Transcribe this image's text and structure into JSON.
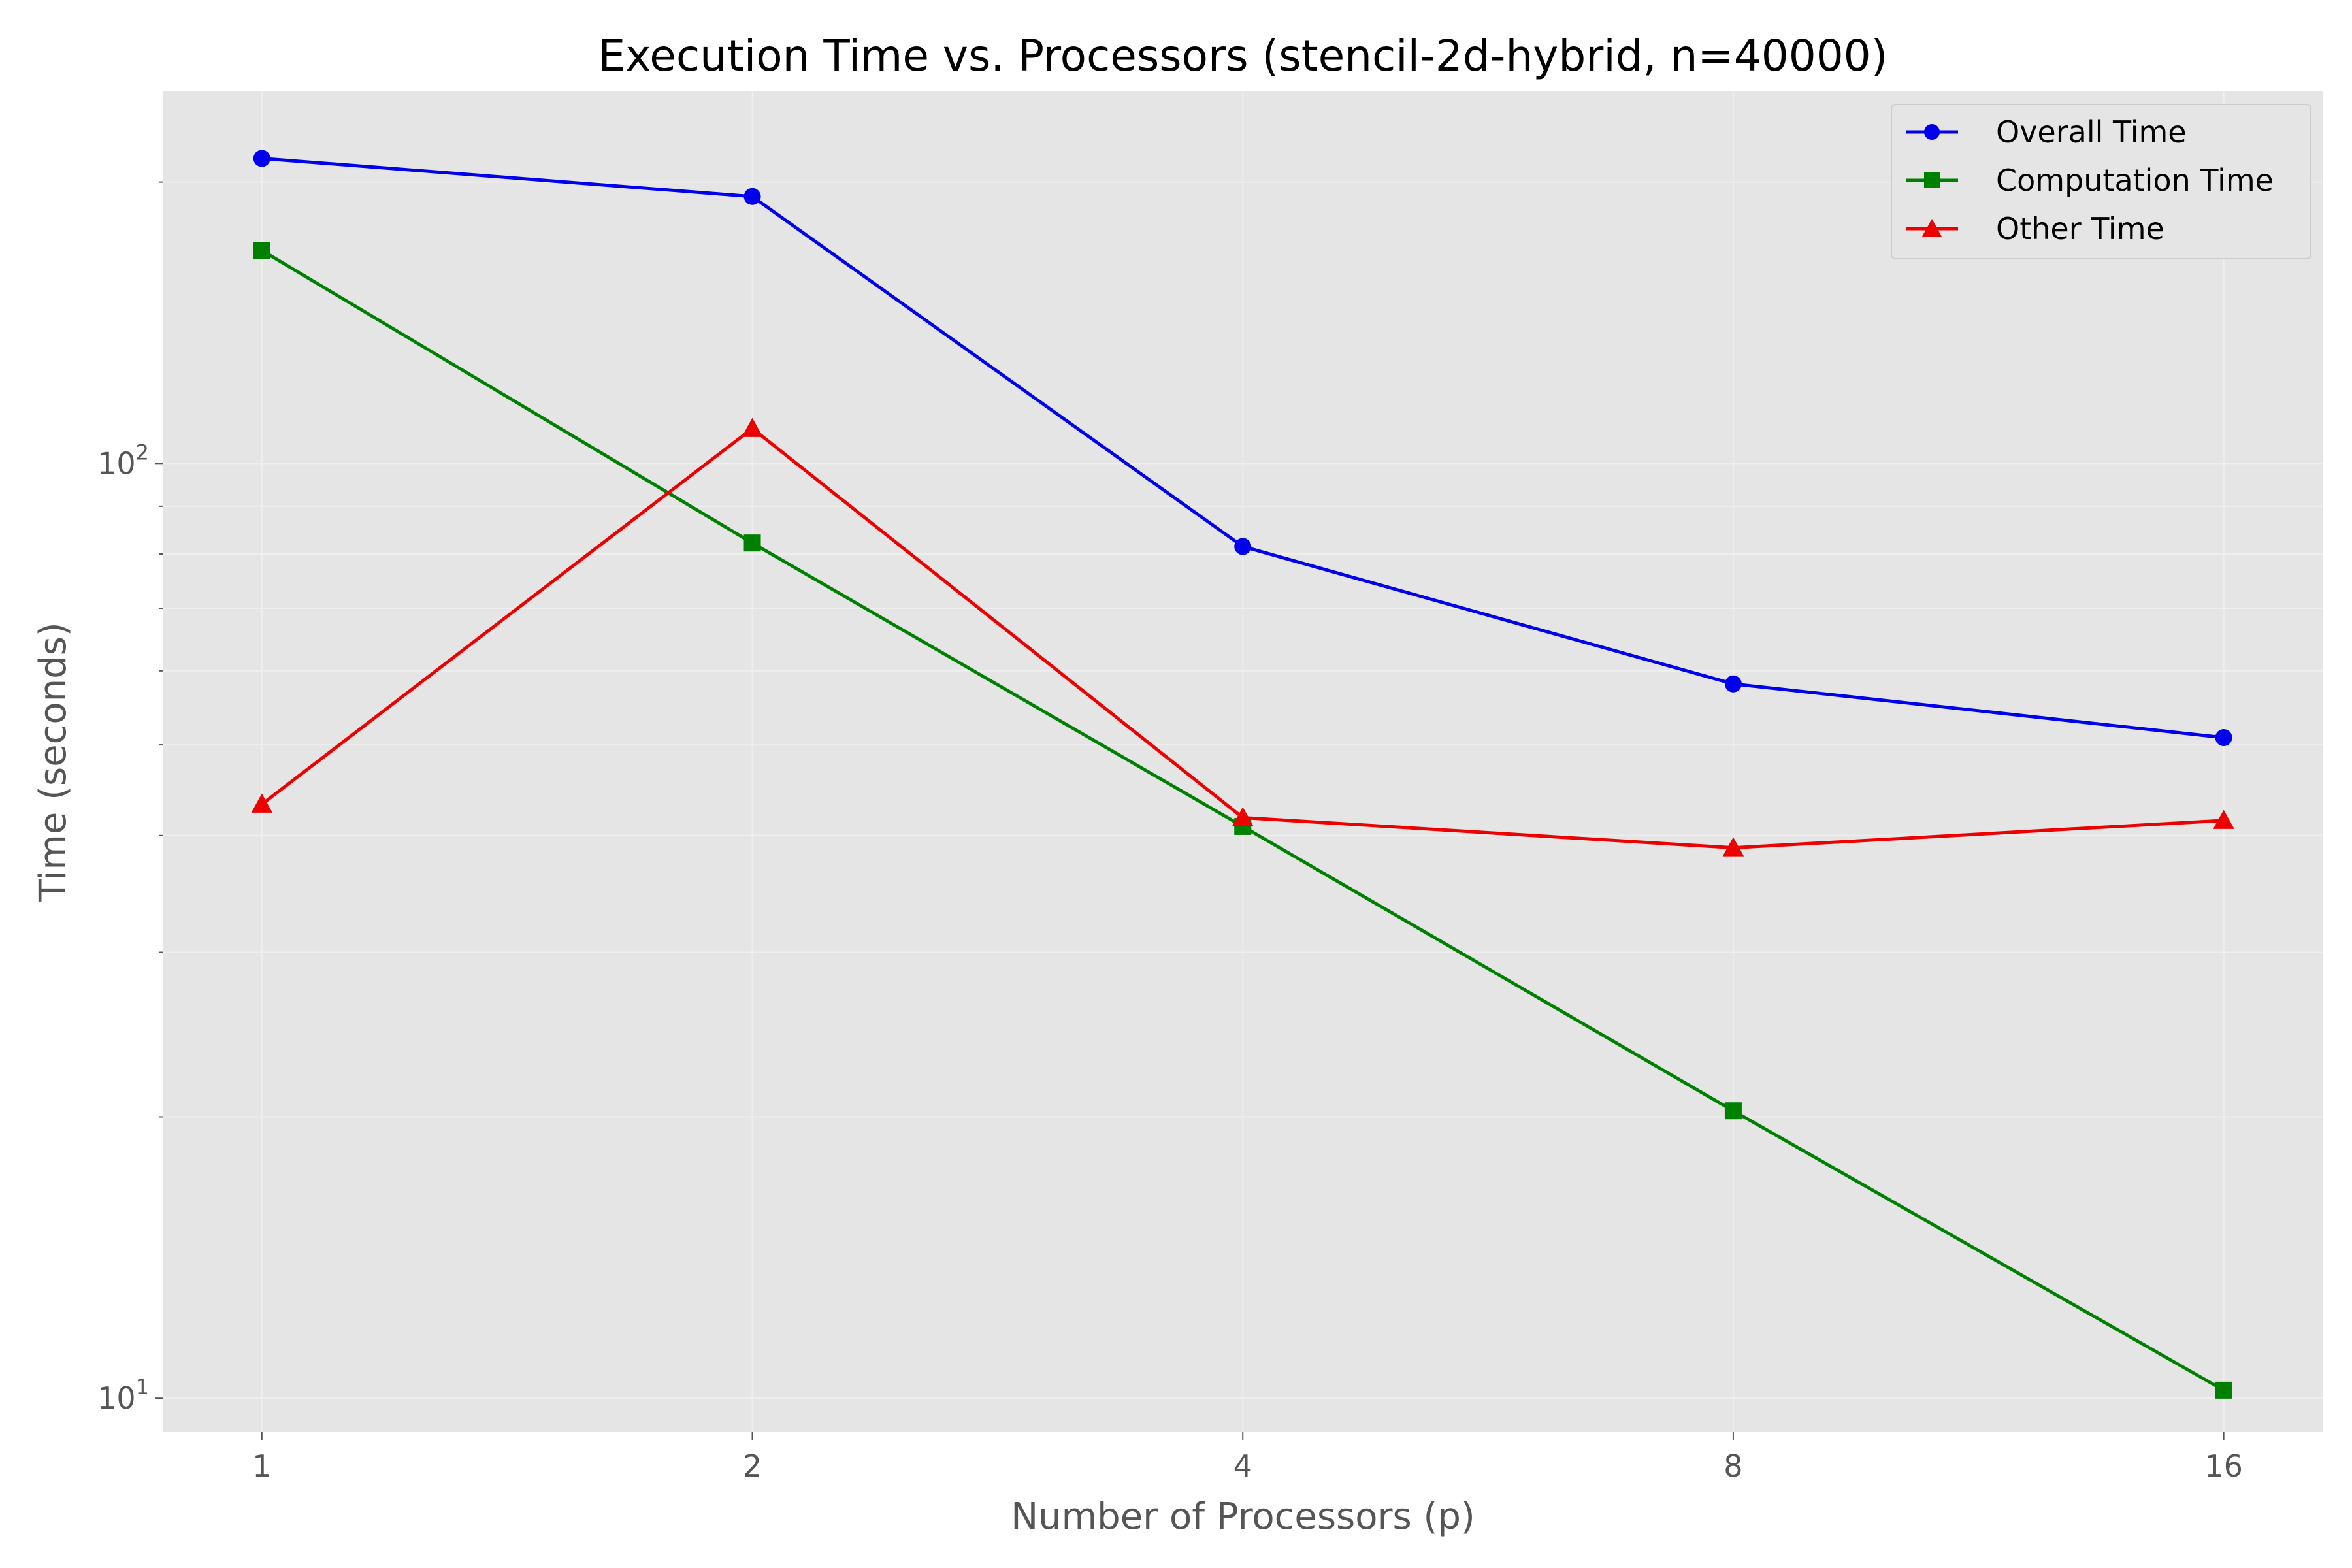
{
  "chart_data": {
    "type": "line",
    "title": "Execution Time vs. Processors (stencil-2d-hybrid, n=40000)",
    "xlabel": "Number of Processors (p)",
    "ylabel": "Time (seconds)",
    "x_scale": "log2",
    "y_scale": "log10",
    "x": [
      1,
      2,
      4,
      8,
      16
    ],
    "x_tick_labels": [
      "1",
      "2",
      "4",
      "8",
      "16"
    ],
    "y_ticks": [
      {
        "value": 10,
        "base": "10",
        "exp": "1"
      },
      {
        "value": 100,
        "base": "10",
        "exp": "2"
      }
    ],
    "ylim": [
      9.2,
      250
    ],
    "xlim": [
      0.87,
      18.4
    ],
    "grid": true,
    "legend_position": "top-right",
    "series": [
      {
        "name": "Overall Time",
        "color": "#0000ee",
        "marker": "circle",
        "values": [
          212,
          193,
          81.5,
          58.1,
          50.9
        ]
      },
      {
        "name": "Computation Time",
        "color": "#008000",
        "marker": "square",
        "values": [
          169,
          82.2,
          40.9,
          20.3,
          10.2
        ]
      },
      {
        "name": "Other Time",
        "color": "#ee0000",
        "marker": "triangle",
        "values": [
          43.2,
          109,
          41.8,
          38.8,
          41.5
        ]
      }
    ]
  }
}
